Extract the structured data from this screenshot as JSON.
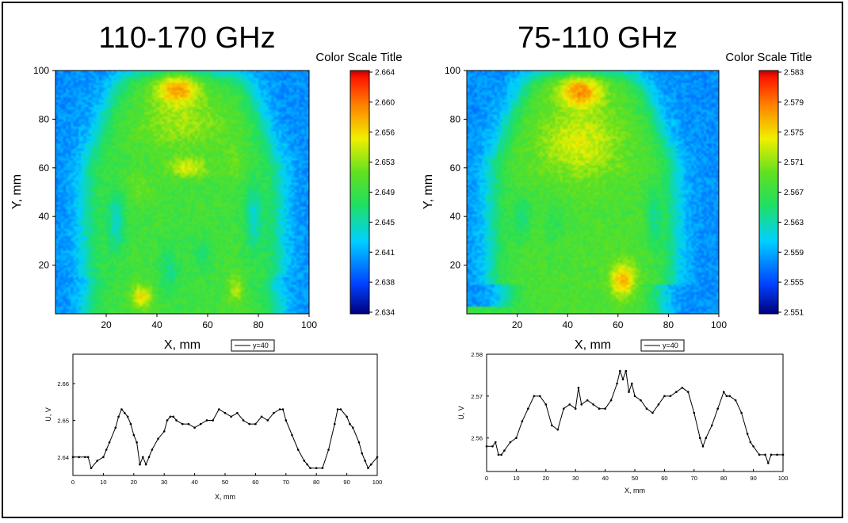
{
  "chart_data": [
    {
      "type": "heatmap",
      "title": "110-170 GHz",
      "xlabel": "X, mm",
      "ylabel": "Y, mm",
      "xlim": [
        0,
        100
      ],
      "ylim": [
        0,
        100
      ],
      "x_ticks": [
        "20",
        "40",
        "60",
        "80",
        "100"
      ],
      "y_ticks": [
        "20",
        "40",
        "60",
        "80",
        "100"
      ],
      "colorbar": {
        "title": "Color Scale Title",
        "ticks": [
          "2.664",
          "2.660",
          "2.656",
          "2.653",
          "2.649",
          "2.645",
          "2.641",
          "2.638",
          "2.634"
        ],
        "range": [
          2.634,
          2.664
        ]
      }
    },
    {
      "type": "line",
      "xlabel": "X, mm",
      "ylabel": "U, V",
      "xlim": [
        0,
        100
      ],
      "ylim": [
        2.635,
        2.668
      ],
      "x_ticks": [
        "0",
        "10",
        "20",
        "30",
        "40",
        "50",
        "60",
        "70",
        "80",
        "90",
        "100"
      ],
      "y_ticks": [
        "2.64",
        "2.65",
        "2.66"
      ],
      "series": [
        {
          "name": "y=40",
          "x": [
            0,
            2,
            4,
            5,
            6,
            8,
            10,
            11,
            12,
            14,
            15,
            16,
            17,
            18,
            19,
            20,
            21,
            22,
            23,
            24,
            25,
            26,
            28,
            30,
            31,
            32,
            33,
            34,
            36,
            38,
            40,
            42,
            44,
            46,
            48,
            50,
            52,
            54,
            56,
            58,
            60,
            62,
            64,
            66,
            68,
            69,
            70,
            72,
            74,
            76,
            77,
            78,
            80,
            82,
            84,
            86,
            87,
            88,
            90,
            91,
            92,
            94,
            95,
            96,
            97,
            98,
            100
          ],
          "y": [
            2.64,
            2.64,
            2.64,
            2.64,
            2.637,
            2.639,
            2.64,
            2.642,
            2.644,
            2.648,
            2.651,
            2.653,
            2.652,
            2.651,
            2.649,
            2.646,
            2.644,
            2.638,
            2.64,
            2.638,
            2.64,
            2.642,
            2.645,
            2.647,
            2.65,
            2.651,
            2.651,
            2.65,
            2.649,
            2.649,
            2.648,
            2.649,
            2.65,
            2.65,
            2.653,
            2.652,
            2.651,
            2.652,
            2.65,
            2.649,
            2.649,
            2.651,
            2.65,
            2.652,
            2.653,
            2.653,
            2.65,
            2.646,
            2.642,
            2.639,
            2.638,
            2.637,
            2.637,
            2.637,
            2.642,
            2.649,
            2.653,
            2.653,
            2.651,
            2.649,
            2.648,
            2.644,
            2.641,
            2.639,
            2.637,
            2.638,
            2.64
          ]
        }
      ]
    },
    {
      "type": "heatmap",
      "title": "75-110 GHz",
      "xlabel": "X, mm",
      "ylabel": "Y, mm",
      "xlim": [
        0,
        100
      ],
      "ylim": [
        0,
        100
      ],
      "x_ticks": [
        "20",
        "40",
        "60",
        "80",
        "100"
      ],
      "y_ticks": [
        "20",
        "40",
        "60",
        "80",
        "100"
      ],
      "colorbar": {
        "title": "Color Scale Title",
        "ticks": [
          "2.583",
          "2.579",
          "2.575",
          "2.571",
          "2.567",
          "2.563",
          "2.559",
          "2.555",
          "2.551"
        ],
        "range": [
          2.551,
          2.583
        ]
      }
    },
    {
      "type": "line",
      "xlabel": "X, mm",
      "ylabel": "U, V",
      "xlim": [
        0,
        100
      ],
      "ylim": [
        2.552,
        2.58
      ],
      "x_ticks": [
        "0",
        "10",
        "20",
        "30",
        "40",
        "50",
        "60",
        "70",
        "80",
        "90",
        "100"
      ],
      "y_ticks": [
        "2.56",
        "2.57",
        "2.58"
      ],
      "series": [
        {
          "name": "y=40",
          "x": [
            0,
            2,
            3,
            4,
            5,
            6,
            8,
            10,
            12,
            14,
            16,
            18,
            20,
            22,
            24,
            26,
            28,
            30,
            31,
            32,
            34,
            36,
            38,
            40,
            42,
            44,
            45,
            46,
            47,
            48,
            49,
            50,
            52,
            54,
            56,
            58,
            60,
            62,
            64,
            66,
            68,
            70,
            72,
            73,
            74,
            76,
            78,
            80,
            81,
            82,
            84,
            86,
            88,
            89,
            90,
            92,
            94,
            95,
            96,
            98,
            100
          ],
          "y": [
            2.558,
            2.558,
            2.559,
            2.556,
            2.556,
            2.557,
            2.559,
            2.56,
            2.564,
            2.567,
            2.57,
            2.57,
            2.568,
            2.563,
            2.562,
            2.567,
            2.568,
            2.567,
            2.572,
            2.568,
            2.569,
            2.568,
            2.567,
            2.567,
            2.569,
            2.573,
            2.576,
            2.574,
            2.576,
            2.571,
            2.573,
            2.57,
            2.569,
            2.567,
            2.566,
            2.568,
            2.57,
            2.57,
            2.571,
            2.572,
            2.571,
            2.566,
            2.56,
            2.558,
            2.56,
            2.563,
            2.567,
            2.571,
            2.57,
            2.57,
            2.569,
            2.566,
            2.561,
            2.559,
            2.558,
            2.556,
            2.556,
            2.554,
            2.556,
            2.556,
            2.556
          ]
        }
      ]
    }
  ]
}
